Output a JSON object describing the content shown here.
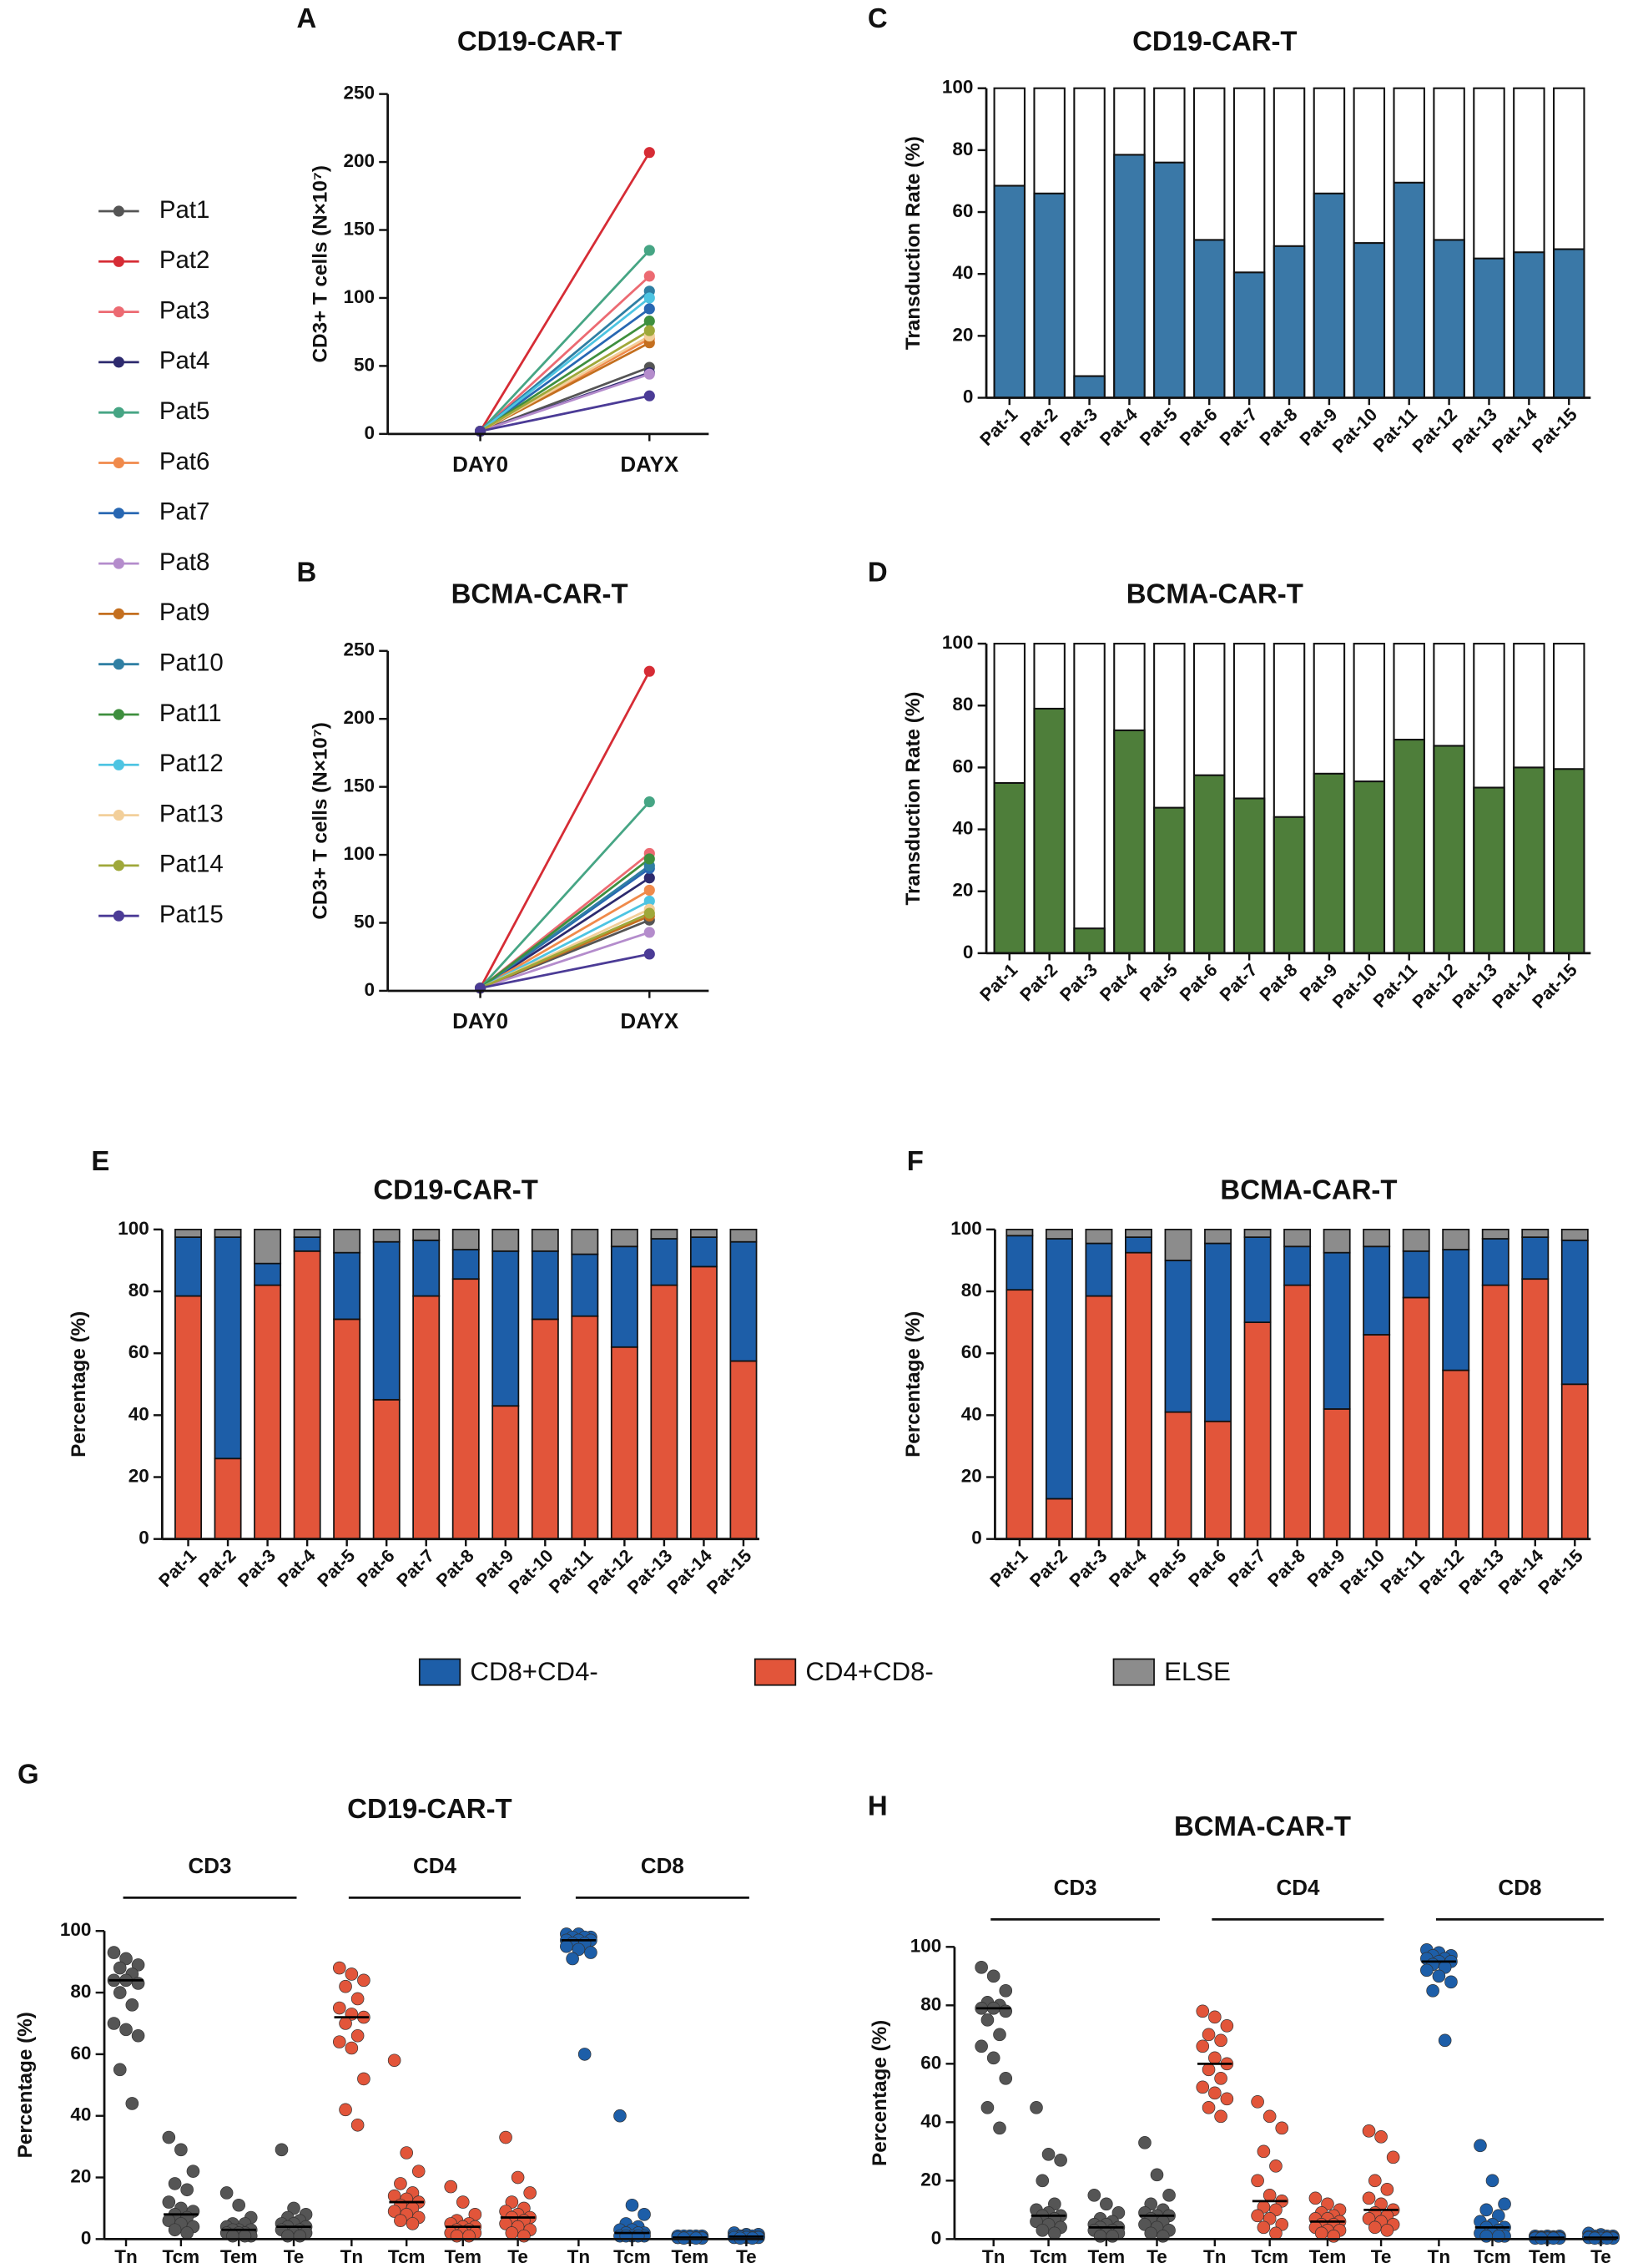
{
  "chart_data": [
    {
      "type": "line",
      "panel_label": "A",
      "title": "CD19-CAR-T",
      "ylabel": "CD3+ T cells (N×10⁷)",
      "legend": "left",
      "categories": [
        "DAY0",
        "DAYX"
      ],
      "ylim": [
        0,
        250
      ],
      "yticks": [
        0,
        50,
        100,
        150,
        200,
        250
      ],
      "series": [
        {
          "name": "Pat1",
          "color": "#555555",
          "values": [
            2,
            49
          ]
        },
        {
          "name": "Pat2",
          "color": "#d62c35",
          "values": [
            2,
            207
          ]
        },
        {
          "name": "Pat3",
          "color": "#ec6a72",
          "values": [
            2,
            116
          ]
        },
        {
          "name": "Pat4",
          "color": "#2d2a6e",
          "values": [
            2,
            45
          ]
        },
        {
          "name": "Pat5",
          "color": "#46a584",
          "values": [
            2,
            135
          ]
        },
        {
          "name": "Pat6",
          "color": "#f08a4b",
          "values": [
            2,
            70
          ]
        },
        {
          "name": "Pat7",
          "color": "#2867b2",
          "values": [
            2,
            92
          ]
        },
        {
          "name": "Pat8",
          "color": "#b48ccc",
          "values": [
            2,
            44
          ]
        },
        {
          "name": "Pat9",
          "color": "#c46f1f",
          "values": [
            2,
            67
          ]
        },
        {
          "name": "Pat10",
          "color": "#2f7fa3",
          "values": [
            2,
            105
          ]
        },
        {
          "name": "Pat11",
          "color": "#3e8f3e",
          "values": [
            2,
            83
          ]
        },
        {
          "name": "Pat12",
          "color": "#4dc4e2",
          "values": [
            2,
            100
          ]
        },
        {
          "name": "Pat13",
          "color": "#f2cf9a",
          "values": [
            2,
            72
          ]
        },
        {
          "name": "Pat14",
          "color": "#9fa83a",
          "values": [
            2,
            76
          ]
        },
        {
          "name": "Pat15",
          "color": "#4b3b96",
          "values": [
            2,
            28
          ]
        }
      ]
    },
    {
      "type": "line",
      "panel_label": "B",
      "title": "BCMA-CAR-T",
      "ylabel": "CD3+ T cells (N×10⁷)",
      "categories": [
        "DAY0",
        "DAYX"
      ],
      "ylim": [
        0,
        250
      ],
      "yticks": [
        0,
        50,
        100,
        150,
        200,
        250
      ],
      "series": [
        {
          "color": "#555555",
          "values": [
            2,
            52
          ]
        },
        {
          "color": "#d62c35",
          "values": [
            2,
            235
          ]
        },
        {
          "color": "#ec6a72",
          "values": [
            2,
            101
          ]
        },
        {
          "color": "#2d2a6e",
          "values": [
            2,
            83
          ]
        },
        {
          "color": "#46a584",
          "values": [
            2,
            139
          ]
        },
        {
          "color": "#f08a4b",
          "values": [
            2,
            74
          ]
        },
        {
          "color": "#2867b2",
          "values": [
            2,
            90
          ]
        },
        {
          "color": "#b48ccc",
          "values": [
            2,
            43
          ]
        },
        {
          "color": "#c46f1f",
          "values": [
            2,
            55
          ]
        },
        {
          "color": "#2f7fa3",
          "values": [
            2,
            92
          ]
        },
        {
          "color": "#3e8f3e",
          "values": [
            2,
            97
          ]
        },
        {
          "color": "#4dc4e2",
          "values": [
            2,
            66
          ]
        },
        {
          "color": "#f2cf9a",
          "values": [
            2,
            60
          ]
        },
        {
          "color": "#9fa83a",
          "values": [
            2,
            57
          ]
        },
        {
          "color": "#4b3b96",
          "values": [
            2,
            27
          ]
        }
      ]
    },
    {
      "type": "bar",
      "panel_label": "C",
      "title": "CD19-CAR-T",
      "ylabel": "Transduction Rate (%)",
      "color": "#3a78a7",
      "categories": [
        "Pat-1",
        "Pat-2",
        "Pat-3",
        "Pat-4",
        "Pat-5",
        "Pat-6",
        "Pat-7",
        "Pat-8",
        "Pat-9",
        "Pat-10",
        "Pat-11",
        "Pat-12",
        "Pat-13",
        "Pat-14",
        "Pat-15"
      ],
      "values": [
        68.5,
        66,
        7,
        78.5,
        76,
        51,
        40.5,
        49,
        66,
        50,
        69.5,
        51,
        45,
        47,
        48
      ],
      "ylim": [
        0,
        100
      ],
      "yticks": [
        0,
        20,
        40,
        60,
        80,
        100
      ]
    },
    {
      "type": "bar",
      "panel_label": "D",
      "title": "BCMA-CAR-T",
      "ylabel": "Transduction Rate (%)",
      "color": "#4e7e3a",
      "categories": [
        "Pat-1",
        "Pat-2",
        "Pat-3",
        "Pat-4",
        "Pat-5",
        "Pat-6",
        "Pat-7",
        "Pat-8",
        "Pat-9",
        "Pat-10",
        "Pat-11",
        "Pat-12",
        "Pat-13",
        "Pat-14",
        "Pat-15"
      ],
      "values": [
        55,
        79,
        8,
        72,
        47,
        57.5,
        50,
        44,
        58,
        55.5,
        69,
        67,
        53.5,
        60,
        59.5
      ],
      "ylim": [
        0,
        100
      ],
      "yticks": [
        0,
        20,
        40,
        60,
        80,
        100
      ]
    },
    {
      "type": "stacked",
      "panel_label": "E",
      "title": "CD19-CAR-T",
      "ylabel": "Percentage (%)",
      "legend": "bottom",
      "categories": [
        "Pat-1",
        "Pat-2",
        "Pat-3",
        "Pat-4",
        "Pat-5",
        "Pat-6",
        "Pat-7",
        "Pat-8",
        "Pat-9",
        "Pat-10",
        "Pat-11",
        "Pat-12",
        "Pat-13",
        "Pat-14",
        "Pat-15"
      ],
      "ylim": [
        0,
        100
      ],
      "yticks": [
        0,
        20,
        40,
        60,
        80,
        100
      ],
      "series": [
        {
          "name": "CD8+CD4-",
          "color": "#1d5ea8",
          "values": [
            19,
            71.5,
            7,
            4.5,
            21.5,
            51,
            18,
            9.5,
            50,
            22,
            20,
            32.5,
            15,
            9.5,
            38.5
          ]
        },
        {
          "name": "CD4+CD8-",
          "color": "#e2553a",
          "values": [
            78.5,
            26,
            82,
            93,
            71,
            45,
            78.5,
            84,
            43,
            71,
            72,
            62,
            82,
            88,
            57.5
          ]
        },
        {
          "name": "ELSE",
          "color": "#8c8c8c",
          "values": [
            2.5,
            2.5,
            11,
            2.5,
            7.5,
            4,
            3.5,
            6.5,
            7,
            7,
            8,
            5.5,
            3,
            2.5,
            4
          ]
        }
      ]
    },
    {
      "type": "stacked",
      "panel_label": "F",
      "title": "BCMA-CAR-T",
      "ylabel": "Percentage (%)",
      "categories": [
        "Pat-1",
        "Pat-2",
        "Pat-3",
        "Pat-4",
        "Pat-5",
        "Pat-6",
        "Pat-7",
        "Pat-8",
        "Pat-9",
        "Pat-10",
        "Pat-11",
        "Pat-12",
        "Pat-13",
        "Pat-14",
        "Pat-15"
      ],
      "ylim": [
        0,
        100
      ],
      "yticks": [
        0,
        20,
        40,
        60,
        80,
        100
      ],
      "series": [
        {
          "color": "#1d5ea8",
          "values": [
            17.5,
            84,
            17,
            5,
            49,
            57.5,
            27.5,
            12.5,
            50.5,
            28.5,
            15,
            39,
            15,
            13.5,
            46.5
          ]
        },
        {
          "color": "#e2553a",
          "values": [
            80.5,
            13,
            78.5,
            92.5,
            41,
            38,
            70,
            82,
            42,
            66,
            78,
            54.5,
            82,
            84,
            50
          ]
        },
        {
          "color": "#8c8c8c",
          "values": [
            2,
            3,
            4.5,
            2.5,
            10,
            4.5,
            2.5,
            5.5,
            7.5,
            5.5,
            7,
            6.5,
            3,
            2.5,
            3.5
          ]
        }
      ]
    },
    {
      "type": "dot",
      "panel_label": "G",
      "title": "CD19-CAR-T",
      "ylabel": "Percentage (%)",
      "categories": [
        "Tn",
        "Tcm",
        "Tem",
        "Te",
        "Tn",
        "Tcm",
        "Tem",
        "Te",
        "Tn",
        "Tcm",
        "Tem",
        "Te"
      ],
      "ylim": [
        0,
        100
      ],
      "yticks": [
        0,
        20,
        40,
        60,
        80,
        100
      ],
      "groups": [
        {
          "name": "CD3",
          "color": "#555555",
          "medians": [
            84,
            8,
            3,
            4
          ],
          "values": [
            [
              93,
              91,
              89,
              88,
              86,
              84,
              84,
              83,
              80,
              76,
              70,
              68,
              66,
              55,
              44
            ],
            [
              33,
              29,
              22,
              18,
              16,
              12,
              10,
              9,
              8,
              7,
              6,
              5,
              4,
              3,
              2
            ],
            [
              15,
              11,
              7,
              5,
              5,
              4,
              3,
              3,
              3,
              2,
              2,
              2,
              1,
              1,
              1
            ],
            [
              29,
              10,
              8,
              7,
              6,
              5,
              5,
              4,
              4,
              3,
              3,
              2,
              2,
              1,
              1
            ]
          ]
        },
        {
          "name": "CD4",
          "color": "#e2553a",
          "medians": [
            72,
            12,
            4,
            7
          ],
          "values": [
            [
              88,
              86,
              84,
              82,
              78,
              75,
              73,
              72,
              70,
              66,
              64,
              62,
              52,
              42,
              37
            ],
            [
              58,
              28,
              22,
              18,
              15,
              14,
              13,
              12,
              11,
              10,
              9,
              8,
              7,
              6,
              5
            ],
            [
              17,
              12,
              8,
              6,
              5,
              5,
              4,
              4,
              3,
              3,
              2,
              2,
              2,
              1,
              1
            ],
            [
              33,
              20,
              15,
              12,
              10,
              9,
              8,
              7,
              7,
              6,
              5,
              4,
              3,
              2,
              1
            ]
          ]
        },
        {
          "name": "CD8",
          "color": "#1d5ea8",
          "medians": [
            97,
            2,
            0.5,
            0.8
          ],
          "values": [
            [
              99,
              99,
              98,
              98,
              98,
              97,
              97,
              97,
              96,
              96,
              95,
              94,
              93,
              91,
              60
            ],
            [
              40,
              11,
              8,
              5,
              4,
              3,
              3,
              2,
              2,
              2,
              1,
              1,
              1,
              1,
              1
            ],
            [
              1,
              1,
              1,
              1,
              1,
              0.5,
              0.5,
              0.5,
              0.5,
              0.5,
              0.5,
              0.5,
              0.3,
              0.3,
              0.3
            ],
            [
              2,
              1.5,
              1.5,
              1,
              1,
              1,
              1,
              0.8,
              0.8,
              0.5,
              0.5,
              0.5,
              0.5,
              0.3,
              0.3
            ]
          ]
        }
      ]
    },
    {
      "type": "dot",
      "panel_label": "H",
      "title": "BCMA-CAR-T",
      "ylabel": "Percentage (%)",
      "categories": [
        "Tn",
        "Tcm",
        "Tem",
        "Te",
        "Tn",
        "Tcm",
        "Tem",
        "Te",
        "Tn",
        "Tcm",
        "Tem",
        "Te"
      ],
      "ylim": [
        0,
        100
      ],
      "yticks": [
        0,
        20,
        40,
        60,
        80,
        100
      ],
      "groups": [
        {
          "name": "CD3",
          "color": "#555555",
          "medians": [
            79,
            8,
            4,
            8
          ],
          "values": [
            [
              93,
              90,
              85,
              81,
              80,
              79,
              79,
              78,
              75,
              70,
              66,
              62,
              55,
              45,
              38
            ],
            [
              45,
              29,
              27,
              20,
              12,
              10,
              9,
              8,
              8,
              7,
              6,
              5,
              4,
              3,
              2
            ],
            [
              15,
              12,
              9,
              7,
              6,
              5,
              5,
              4,
              4,
              3,
              3,
              2,
              2,
              1,
              1
            ],
            [
              33,
              22,
              15,
              12,
              10,
              9,
              8,
              8,
              7,
              6,
              5,
              4,
              3,
              2,
              1
            ]
          ]
        },
        {
          "name": "CD4",
          "color": "#e2553a",
          "medians": [
            60,
            13,
            6,
            10
          ],
          "values": [
            [
              78,
              76,
              73,
              70,
              68,
              66,
              62,
              60,
              58,
              55,
              52,
              50,
              48,
              45,
              42
            ],
            [
              47,
              42,
              38,
              30,
              25,
              20,
              15,
              13,
              11,
              10,
              8,
              7,
              5,
              4,
              2
            ],
            [
              14,
              12,
              10,
              9,
              8,
              7,
              7,
              6,
              5,
              5,
              4,
              3,
              3,
              2,
              1
            ],
            [
              37,
              35,
              28,
              20,
              17,
              14,
              12,
              10,
              9,
              8,
              7,
              6,
              5,
              4,
              3
            ]
          ]
        },
        {
          "name": "CD8",
          "color": "#1d5ea8",
          "medians": [
            95,
            4,
            0.5,
            0.5
          ],
          "values": [
            [
              99,
              98,
              97,
              97,
              96,
              96,
              95,
              95,
              94,
              93,
              92,
              90,
              88,
              85,
              68
            ],
            [
              32,
              20,
              12,
              10,
              8,
              6,
              5,
              4,
              4,
              3,
              2,
              2,
              1,
              1,
              1
            ],
            [
              1,
              1,
              1,
              0.8,
              0.8,
              0.5,
              0.5,
              0.5,
              0.5,
              0.5,
              0.3,
              0.3,
              0.3,
              0.3,
              0.3
            ],
            [
              2,
              1.5,
              1,
              1,
              1,
              0.8,
              0.8,
              0.5,
              0.5,
              0.5,
              0.5,
              0.3,
              0.3,
              0.3,
              0.3
            ]
          ]
        }
      ]
    }
  ]
}
